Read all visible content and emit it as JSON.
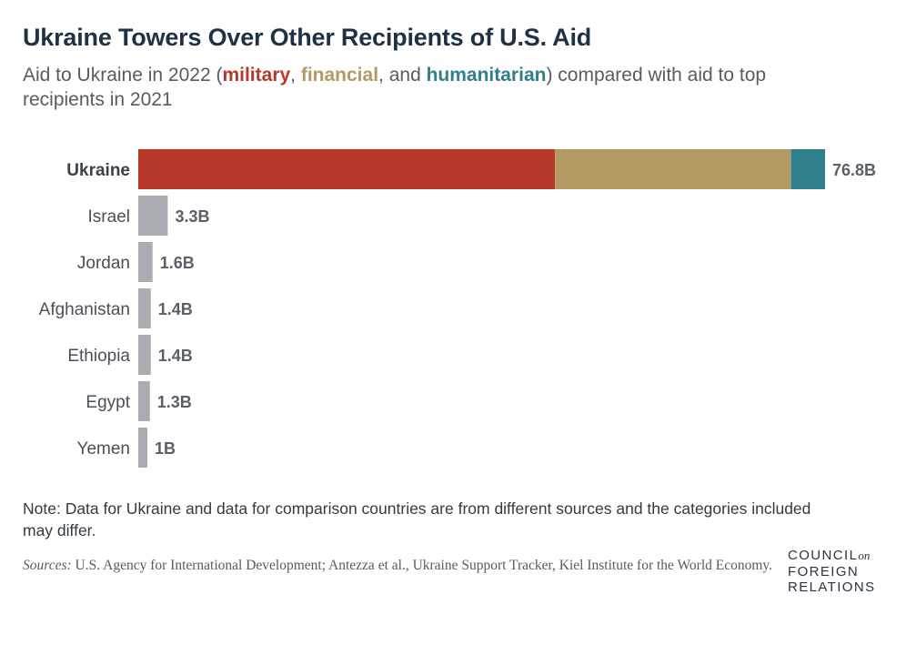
{
  "title": "Ukraine Towers Over Other Recipients of U.S. Aid",
  "subtitle": {
    "prefix": "Aid to Ukraine in 2022 (",
    "military": "military",
    "sep1": ", ",
    "financial": "financial",
    "sep2": ", and ",
    "humanitarian": "humanitarian",
    "suffix": ") compared with aid to top recipients in 2021"
  },
  "colors": {
    "military": "#b8382a",
    "financial": "#b39a62",
    "humanitarian": "#2f7f8c",
    "other": "#a9adb1"
  },
  "chart_data": {
    "type": "bar",
    "orientation": "horizontal",
    "title": "Ukraine Towers Over Other Recipients of U.S. Aid",
    "xlabel": "",
    "ylabel": "",
    "units": "billion USD",
    "xlim": [
      0,
      76.8
    ],
    "grid": false,
    "categories": [
      "Ukraine",
      "Israel",
      "Jordan",
      "Afghanistan",
      "Ethiopia",
      "Egypt",
      "Yemen"
    ],
    "values": [
      76.8,
      3.3,
      1.6,
      1.4,
      1.4,
      1.3,
      1.0
    ],
    "labels": [
      "76.8B",
      "3.3B",
      "1.6B",
      "1.4B",
      "1.4B",
      "1.3B",
      "1B"
    ],
    "highlight": "Ukraine",
    "ukraine_breakdown": [
      {
        "name": "military",
        "value": 46.6
      },
      {
        "name": "financial",
        "value": 26.4
      },
      {
        "name": "humanitarian",
        "value": 3.8
      }
    ]
  },
  "note": "Note: Data for Ukraine and data for comparison countries are from different sources and the categories included may differ.",
  "sources": {
    "label": "Sources:",
    "text": " U.S. Agency for International Development; Antezza et al., Ukraine Support Tracker, Kiel Institute for the World Economy."
  },
  "logo": {
    "line1": "COUNCIL",
    "on": "on",
    "line2": "FOREIGN",
    "line3": "RELATIONS"
  }
}
